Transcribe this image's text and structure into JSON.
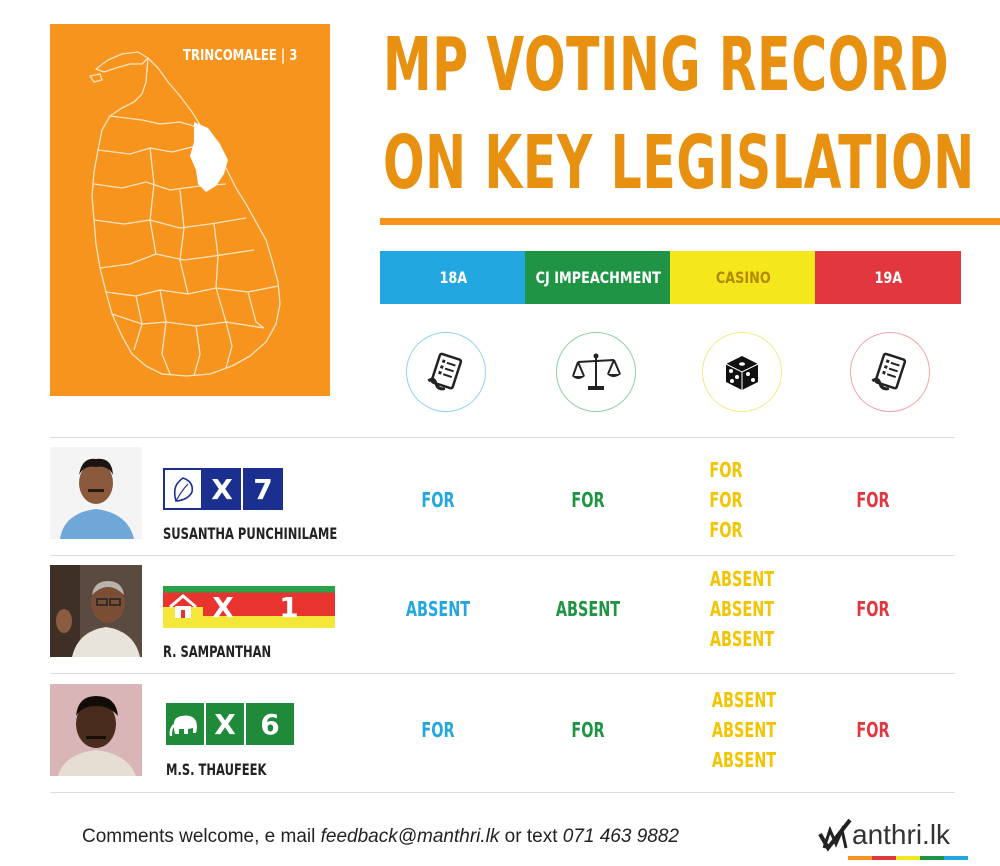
{
  "district": {
    "label": "TRINCOMALEE | 3"
  },
  "title": {
    "line1": "MP VOTING RECORD",
    "line2": "ON KEY LEGISLATION"
  },
  "legislation": [
    {
      "id": "18a",
      "label": "18A",
      "icon": "document-icon",
      "color": "#22a7e0"
    },
    {
      "id": "cj",
      "label": "CJ IMPEACHMENT",
      "icon": "scales-icon",
      "color": "#1f9444"
    },
    {
      "id": "casino",
      "label": "CASINO",
      "icon": "dice-icon",
      "color": "#f4e81c"
    },
    {
      "id": "19a",
      "label": "19A",
      "icon": "document-icon",
      "color": "#e2373f"
    }
  ],
  "mps": [
    {
      "name": "SUSANTHA PUNCHINILAME",
      "party_symbol": "betel-leaf-icon",
      "x_label": "X",
      "preference_number": "7",
      "votes": {
        "18a": "FOR",
        "cj": "FOR",
        "casino": [
          "FOR",
          "FOR",
          "FOR"
        ],
        "19a": "FOR"
      }
    },
    {
      "name": "R. SAMPANTHAN",
      "party_symbol": "house-icon",
      "x_label": "X",
      "preference_number": "1",
      "votes": {
        "18a": "ABSENT",
        "cj": "ABSENT",
        "casino": [
          "ABSENT",
          "ABSENT",
          "ABSENT"
        ],
        "19a": "FOR"
      }
    },
    {
      "name": "M.S. THAUFEEK",
      "party_symbol": "elephant-icon",
      "x_label": "X",
      "preference_number": "6",
      "votes": {
        "18a": "FOR",
        "cj": "FOR",
        "casino": [
          "ABSENT",
          "ABSENT",
          "ABSENT"
        ],
        "19a": "FOR"
      }
    }
  ],
  "footer": {
    "text_prefix": "Comments welcome, e mail ",
    "email": "feedback@manthri.lk",
    "text_mid": " or text ",
    "phone": "071 463 9882"
  },
  "logo": {
    "text": "anthri.lk",
    "mark": "checkmark-m-icon"
  }
}
